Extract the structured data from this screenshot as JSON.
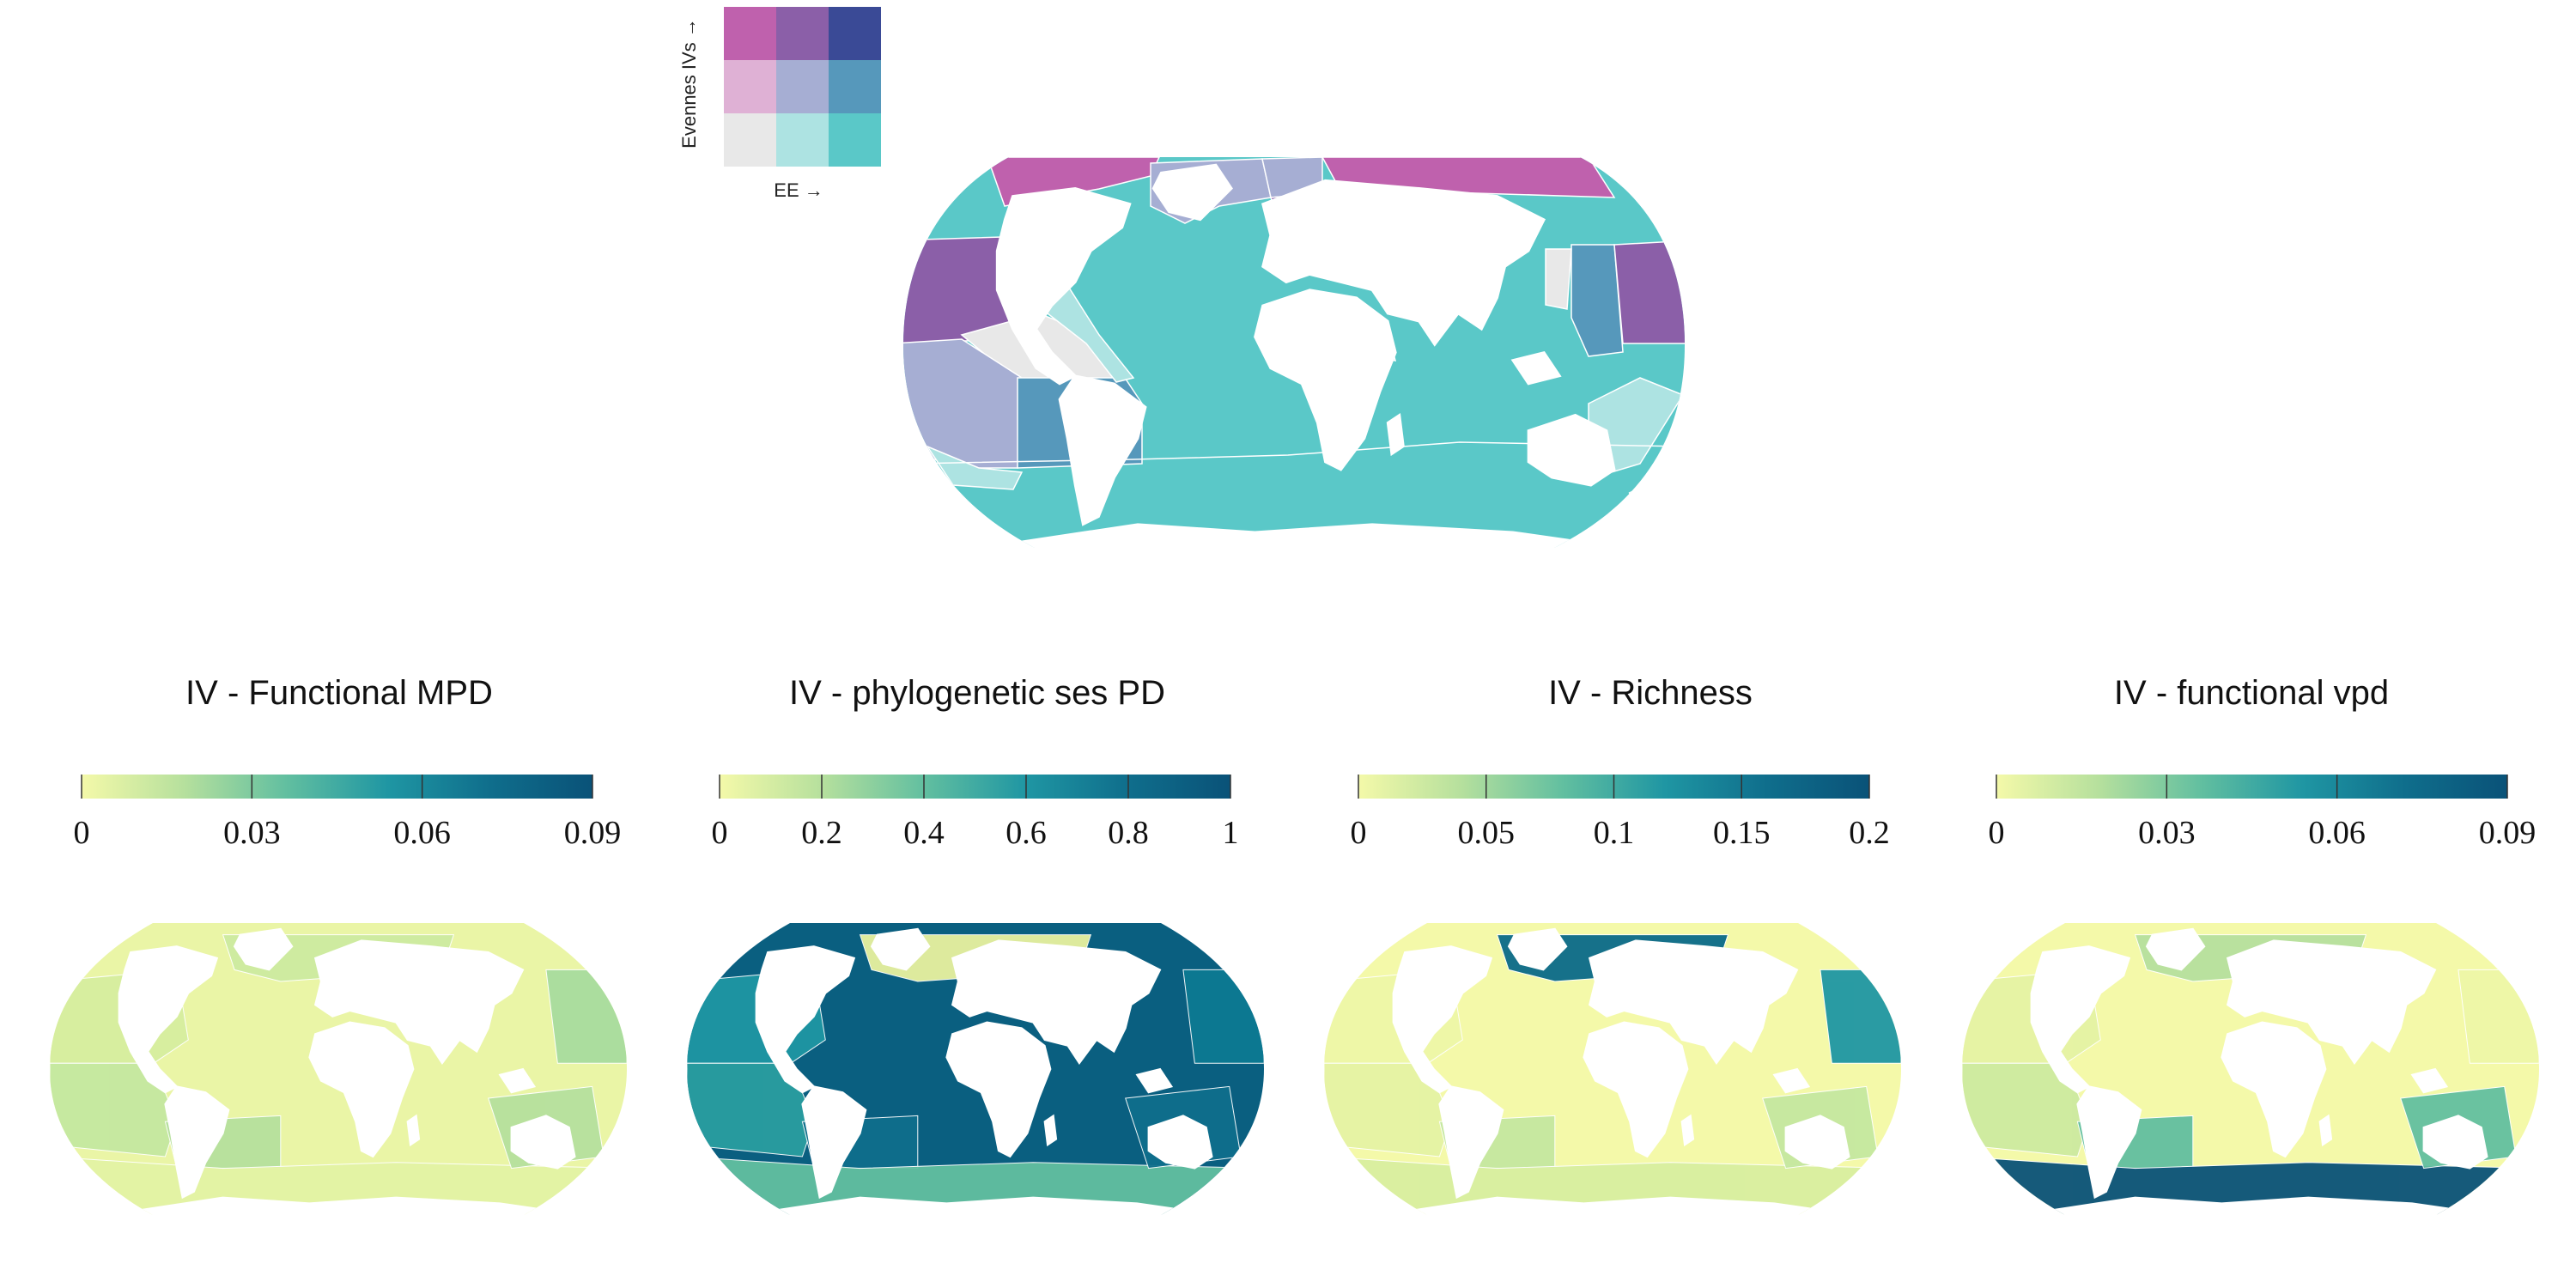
{
  "bivariate_legend": {
    "y_label": "Evennes IVs →",
    "x_label": "EE →",
    "grid": [
      [
        "#bf61ad",
        "#8b5fa8",
        "#3a4a96"
      ],
      [
        "#dfb1d5",
        "#a6aed3",
        "#5698bb"
      ],
      [
        "#e8e8e8",
        "#ade3e2",
        "#5ac8c8"
      ]
    ]
  },
  "land_color": "#ffffff",
  "panels": [
    {
      "title": "IV - Functional MPD",
      "colorbar": {
        "min": 0,
        "max": 0.09,
        "ticks": [
          "0",
          "0.03",
          "0.06",
          "0.09"
        ],
        "tick_values": [
          0,
          0.03,
          0.06,
          0.09
        ]
      }
    },
    {
      "title": "IV - phylogenetic ses PD",
      "colorbar": {
        "min": 0,
        "max": 1,
        "ticks": [
          "0",
          "0.2",
          "0.4",
          "0.6",
          "0.8",
          "1"
        ],
        "tick_values": [
          0,
          0.2,
          0.4,
          0.6,
          0.8,
          1
        ]
      }
    },
    {
      "title": "IV - Richness",
      "colorbar": {
        "min": 0,
        "max": 0.2,
        "ticks": [
          "0",
          "0.05",
          "0.1",
          "0.15",
          "0.2"
        ],
        "tick_values": [
          0,
          0.05,
          0.1,
          0.15,
          0.2
        ]
      }
    },
    {
      "title": "IV - functional vpd",
      "colorbar": {
        "min": 0,
        "max": 0.09,
        "ticks": [
          "0",
          "0.03",
          "0.06",
          "0.09"
        ],
        "tick_values": [
          0,
          0.03,
          0.06,
          0.09
        ]
      }
    }
  ],
  "colormap": [
    "#f4f9a9",
    "#b6e09d",
    "#62bfa0",
    "#1f96a3",
    "#0f6e8c",
    "#0a5278"
  ]
}
